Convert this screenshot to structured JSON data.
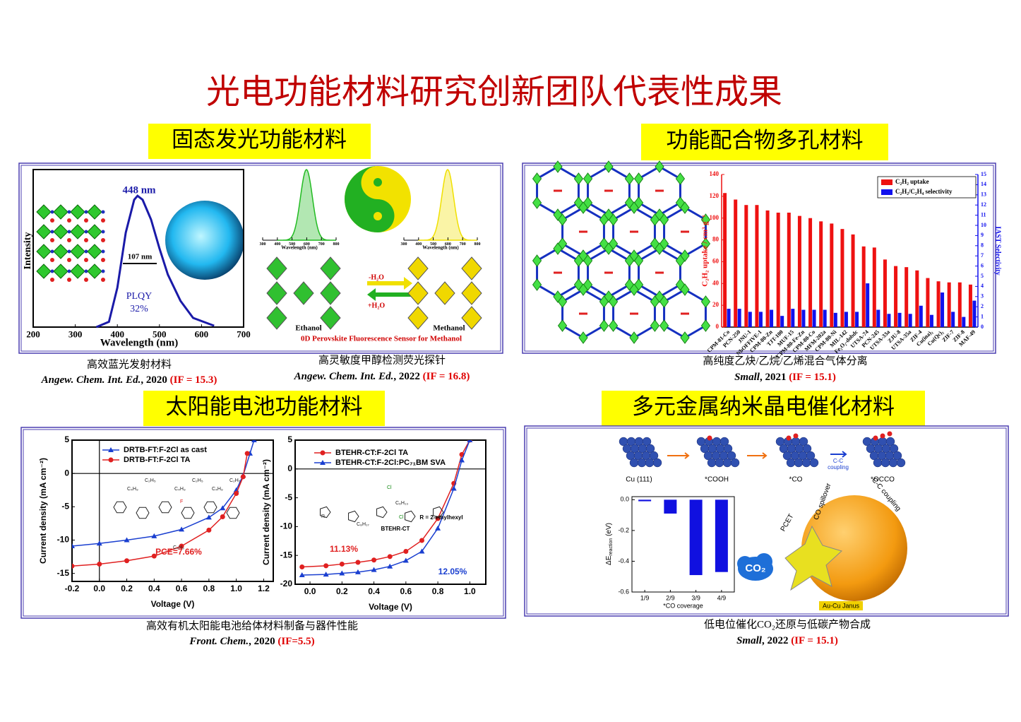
{
  "title": "光电功能材料研究创新团队代表性成果",
  "headings": [
    "固态发光功能材料",
    "功能配合物多孔材料",
    "太阳能电池功能材料",
    "多元金属纳米晶电催化材料"
  ],
  "captions": [
    {
      "text": "高效蓝光发射材料",
      "journal": "Angew. Chem. Int. Ed.",
      "year": ",  2020 ",
      "impact": "(IF = 15.3)"
    },
    {
      "text": "高灵敏度甲醇检测荧光探针",
      "journal": "Angew. Chem. Int. Ed.",
      "year": ", 2022 ",
      "impact": "(IF = 16.8)"
    },
    {
      "text": "高纯度乙炔/乙烷/乙烯混合气体分离",
      "journal": "Small",
      "year": ", 2021 ",
      "impact": "(IF = 15.1)"
    },
    {
      "text": "高效有机太阳能电池给体材料制备与器件性能",
      "journal": "Front. Chem.",
      "year": ", 2020 ",
      "impact": "(IF=5.5)"
    },
    {
      "text": "低电位催化CO₂还原与低碳产物合成",
      "journal": "Small",
      "year": ", 2022 ",
      "impact": "(IF = 15.1)"
    }
  ],
  "emission": {
    "type": "line",
    "x": [
      350,
      380,
      400,
      420,
      440,
      448,
      460,
      480,
      500,
      520,
      550,
      580,
      630
    ],
    "values": [
      0,
      0.04,
      0.3,
      0.72,
      0.97,
      1,
      0.97,
      0.82,
      0.6,
      0.4,
      0.2,
      0.07,
      0.01
    ],
    "color": "#1a1aa8",
    "xlim": [
      200,
      700
    ],
    "ylim": [
      0,
      1.2
    ],
    "xticks": [
      200,
      300,
      400,
      500,
      600,
      700
    ],
    "xlabel": "Wavelength (nm)",
    "ylabel": "Intensity",
    "annotations": [
      "448 nm",
      "107 nm",
      "PLQY",
      "32%"
    ]
  },
  "sensor": {
    "insets": [
      {
        "xlim": [
          300,
          800
        ],
        "xticks": [
          300,
          400,
          500,
          600,
          700,
          800
        ],
        "xlabel": "Wavelength (nm)",
        "color": "#22bb22"
      },
      {
        "xlim": [
          300,
          800
        ],
        "xticks": [
          300,
          400,
          500,
          600,
          700,
          800
        ],
        "xlabel": "Wavelength (nm)",
        "color": "#f0e000"
      }
    ],
    "arrows": [
      "-H₂O",
      "+H₂O"
    ],
    "left": "Ethanol",
    "right": "Methanol",
    "caption": "0D Perovskite Fluorescence Sensor for Methanol"
  },
  "adsorption": {
    "type": "bar",
    "categories": [
      "CPM-81-Co",
      "PCN-250",
      "JNU-1",
      "NbOFFIVE-1",
      "CPM-80-Zn",
      "TJT-100",
      "MUF-15",
      "CPM-80-Fe-Zn",
      "CPM-80-Co",
      "MFM-202a",
      "CPM-80-Ni",
      "MIL-142",
      "Fe₂O₂-dobdc",
      "UTSA-74",
      "PCN-245",
      "UTSA-33a",
      "ZJU-8",
      "UTSA-35a",
      "ZIF-4",
      "Cu(ina)₂",
      "Cu(Qc)₂",
      "ZIF-7",
      "ZIF-8",
      "MAF-49"
    ],
    "series": [
      {
        "name": "C₂H₂ uptake",
        "color": "#ee1111",
        "values": [
          123,
          117,
          112,
          112,
          107,
          105,
          105,
          102,
          100,
          97,
          95,
          90,
          85,
          74,
          73,
          62,
          56,
          55,
          52,
          45,
          42,
          41,
          41,
          39
        ]
      },
      {
        "name": "C₂H₂/C₂H₄ selectivity",
        "color": "#1111ee",
        "axis": "y2",
        "values": [
          1.8,
          1.8,
          1.5,
          1.5,
          1.7,
          1.1,
          1.8,
          1.7,
          1.7,
          1.7,
          1.4,
          1.5,
          1.5,
          4.3,
          1.7,
          1.3,
          1.4,
          1.3,
          2.1,
          1.2,
          3.4,
          1.5,
          1.0,
          2.6
        ]
      }
    ],
    "ylim": [
      0,
      140
    ],
    "yticks": [
      0,
      20,
      40,
      60,
      80,
      100,
      120,
      140
    ],
    "y2lim": [
      0,
      15
    ],
    "y2ticks": [
      0,
      1,
      2,
      3,
      4,
      5,
      6,
      7,
      8,
      9,
      10,
      11,
      12,
      13,
      14,
      15
    ],
    "ylabel": "C₂H₂ uptake / cm³ g⁻¹",
    "y2label": "IAST Selectivity",
    "legend": "upper right"
  },
  "photovoltaic": [
    {
      "type": "line",
      "xlim": [
        -0.2,
        1.27
      ],
      "ylim": [
        -16.2,
        5
      ],
      "xticks": [
        -0.2,
        {
          "value": 0,
          "label": "0.0"
        },
        0.2,
        0.4,
        0.6,
        0.8,
        {
          "value": 1,
          "label": "1.0"
        },
        1.2
      ],
      "yticks": [
        -15,
        -10,
        -5,
        0,
        5
      ],
      "xlabel": "Voltage (V)",
      "ylabel": "Current density (mA cm⁻²)",
      "series": [
        {
          "name": "DRTB-FT:F-2Cl  as cast",
          "color": "#1a3fd0",
          "marker": "triangle",
          "x": [
            -0.2,
            0,
            0.2,
            0.4,
            0.6,
            0.8,
            0.9,
            1.0,
            1.05,
            1.1,
            1.13
          ],
          "values": [
            -10.9,
            -10.5,
            -10,
            -9.4,
            -8.4,
            -6.6,
            -5.2,
            -2.5,
            -0.3,
            3,
            5
          ]
        },
        {
          "name": "DRTB-FT:F-2Cl  TA",
          "color": "#e02020",
          "marker": "circle",
          "x": [
            -0.2,
            0,
            0.2,
            0.4,
            0.6,
            0.8,
            0.9,
            1.0,
            1.05,
            1.08
          ],
          "values": [
            -13.9,
            -13.6,
            -13.1,
            -12.4,
            -10.9,
            -8.5,
            -6.5,
            -3,
            -0.5,
            3
          ]
        }
      ],
      "annotations": [
        "PCE=7.66%"
      ],
      "molecule_labels": [
        "C₄H₉",
        "C₂H₅",
        "F"
      ]
    },
    {
      "type": "line",
      "xlim": [
        -0.093,
        1.1
      ],
      "ylim": [
        -20,
        5
      ],
      "xticks": [
        {
          "value": 0,
          "label": "0.0"
        },
        0.2,
        0.4,
        0.6,
        0.8,
        {
          "value": 1,
          "label": "1.0"
        }
      ],
      "yticks": [
        5,
        0,
        -5,
        -10,
        -15,
        -20
      ],
      "xlabel": "Voltage (V)",
      "ylabel": "Current density (mA cm⁻²)",
      "series": [
        {
          "name": "BTEHR-CT:F-2Cl  TA",
          "color": "#e02020",
          "marker": "circle",
          "x": [
            -0.05,
            0.1,
            0.2,
            0.3,
            0.4,
            0.5,
            0.6,
            0.7,
            0.8,
            0.9,
            0.95,
            1.0
          ],
          "values": [
            -17,
            -16.8,
            -16.5,
            -16.2,
            -15.8,
            -15.2,
            -14.3,
            -12.4,
            -8.6,
            -2.5,
            2.5,
            5
          ]
        },
        {
          "name": "BTEHR-CT:F-2Cl:PC₇₁BM  SVA",
          "color": "#1a3fd0",
          "marker": "triangle",
          "x": [
            -0.05,
            0.1,
            0.2,
            0.3,
            0.4,
            0.5,
            0.6,
            0.7,
            0.8,
            0.9,
            0.95,
            1.0
          ],
          "values": [
            -18.4,
            -18.3,
            -18.1,
            -17.9,
            -17.5,
            -16.9,
            -15.9,
            -14.3,
            -10.3,
            -3.4,
            1.5,
            5
          ]
        }
      ],
      "annotations": [
        "11.13%",
        "12.05%",
        "BTEHR-CT",
        "R = 2-ethylhexyl"
      ],
      "molecule_labels": [
        "C₆H₁₃",
        "C₈H₁₇",
        "R",
        "Cl"
      ]
    }
  ],
  "catalysis": {
    "steps": [
      "Cu (111)",
      "*COOH",
      "*CO",
      "*OCCO"
    ],
    "arrow_label": [
      "C-C",
      "coupling"
    ],
    "chart": {
      "type": "bar",
      "categories": [
        "1/9",
        "2/9",
        "3/9",
        "4/9"
      ],
      "values": [
        -0.01,
        -0.09,
        -0.49,
        -0.47
      ],
      "color": "#1010e0",
      "ylim": [
        -0.6,
        0.02
      ],
      "yticks": [
        {
          "value": 0,
          "label": "0.0"
        },
        -0.2,
        -0.4,
        -0.6
      ],
      "xlabel": "*CO coverage",
      "ylabel": [
        "ΔE",
        "reaction",
        " (eV)"
      ]
    },
    "labels": [
      "PCET",
      "CO spillover",
      "C-C coupling"
    ],
    "particle": "Au-Cu Janus",
    "molecule": "CO₂"
  }
}
